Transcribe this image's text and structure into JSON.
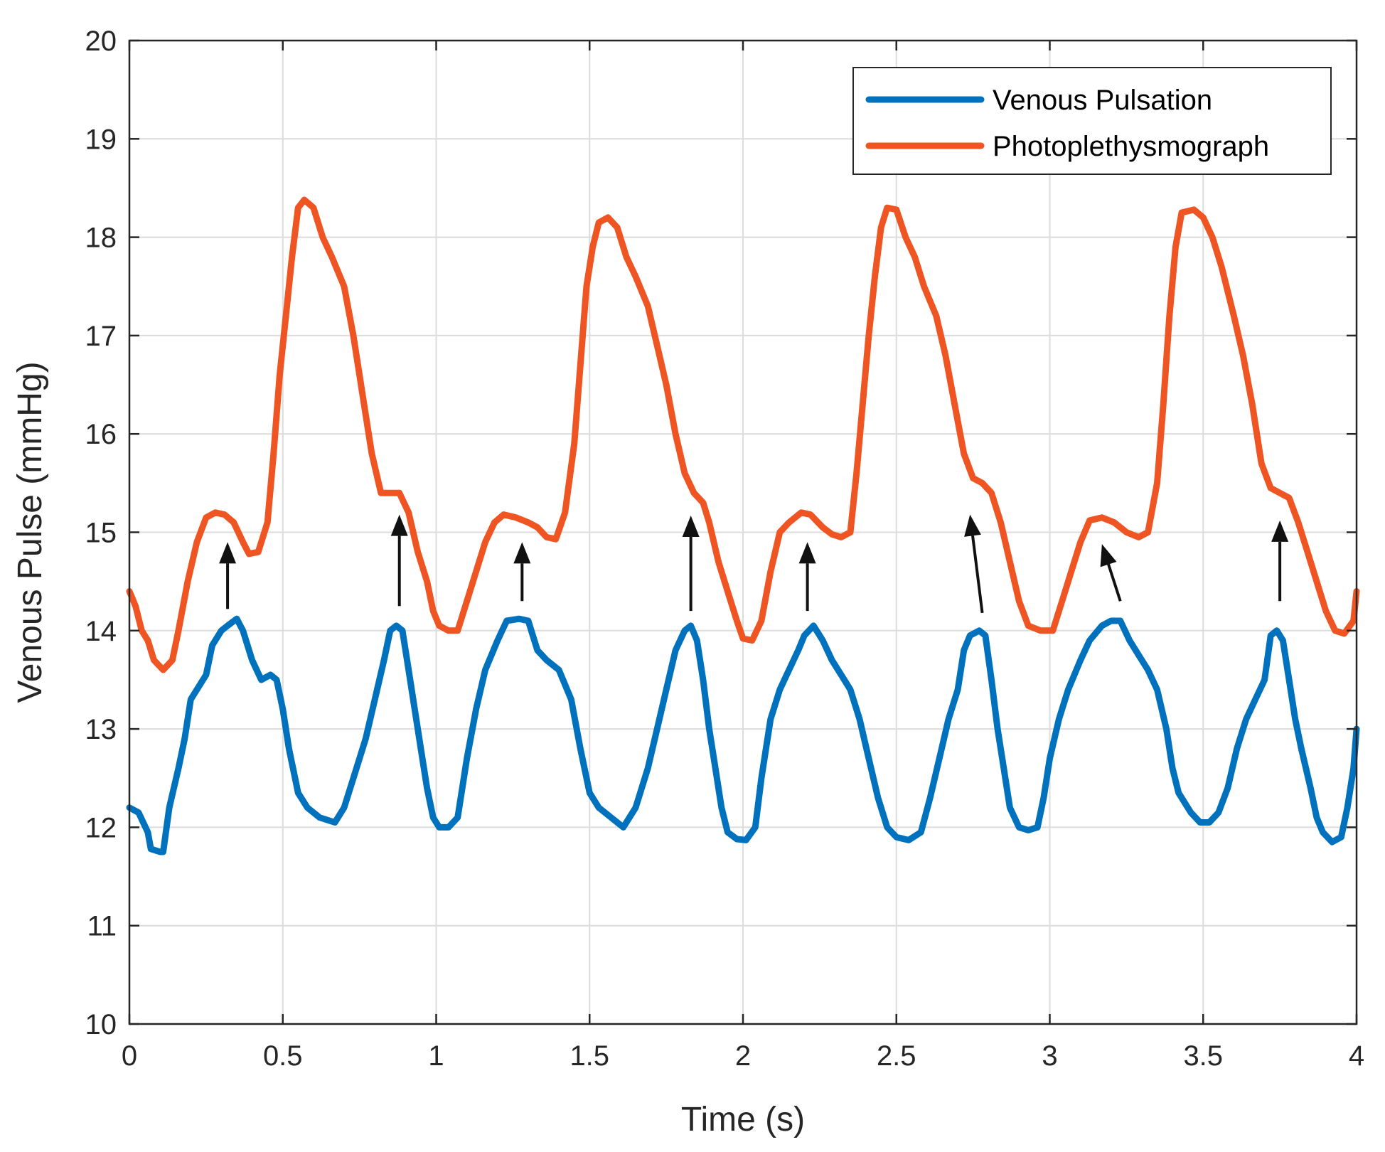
{
  "chart_data": {
    "type": "line",
    "title": "",
    "xlabel": "Time (s)",
    "ylabel": "Venous Pulse (mmHg)",
    "xlim": [
      0,
      4
    ],
    "ylim": [
      10,
      20
    ],
    "xticks": [
      0,
      0.5,
      1,
      1.5,
      2,
      2.5,
      3,
      3.5,
      4
    ],
    "xtick_labels": [
      "0",
      "0.5",
      "1",
      "1.5",
      "2",
      "2.5",
      "3",
      "3.5",
      "4"
    ],
    "yticks": [
      10,
      11,
      12,
      13,
      14,
      15,
      16,
      17,
      18,
      19,
      20
    ],
    "ytick_labels": [
      "10",
      "11",
      "12",
      "13",
      "14",
      "15",
      "16",
      "17",
      "18",
      "19",
      "20"
    ],
    "grid": true,
    "legend_position": "top-right",
    "series": [
      {
        "name": "Venous Pulsation",
        "color": "#0072BD",
        "points": [
          [
            0,
            12.2
          ],
          [
            0.03,
            12.15
          ],
          [
            0.06,
            11.95
          ],
          [
            0.07,
            11.78
          ],
          [
            0.1,
            11.75
          ],
          [
            0.11,
            11.75
          ],
          [
            0.13,
            12.2
          ],
          [
            0.16,
            12.6
          ],
          [
            0.18,
            12.9
          ],
          [
            0.2,
            13.3
          ],
          [
            0.23,
            13.45
          ],
          [
            0.25,
            13.55
          ],
          [
            0.27,
            13.85
          ],
          [
            0.3,
            14.0
          ],
          [
            0.32,
            14.05
          ],
          [
            0.35,
            14.12
          ],
          [
            0.37,
            14.0
          ],
          [
            0.4,
            13.7
          ],
          [
            0.43,
            13.5
          ],
          [
            0.46,
            13.55
          ],
          [
            0.48,
            13.5
          ],
          [
            0.5,
            13.2
          ],
          [
            0.52,
            12.8
          ],
          [
            0.55,
            12.35
          ],
          [
            0.58,
            12.2
          ],
          [
            0.62,
            12.1
          ],
          [
            0.67,
            12.05
          ],
          [
            0.7,
            12.2
          ],
          [
            0.73,
            12.5
          ],
          [
            0.77,
            12.9
          ],
          [
            0.8,
            13.3
          ],
          [
            0.83,
            13.7
          ],
          [
            0.85,
            14.0
          ],
          [
            0.87,
            14.05
          ],
          [
            0.89,
            14.0
          ],
          [
            0.91,
            13.6
          ],
          [
            0.93,
            13.2
          ],
          [
            0.95,
            12.8
          ],
          [
            0.97,
            12.4
          ],
          [
            0.99,
            12.1
          ],
          [
            1.01,
            12.0
          ],
          [
            1.04,
            12.0
          ],
          [
            1.07,
            12.1
          ],
          [
            1.1,
            12.7
          ],
          [
            1.13,
            13.2
          ],
          [
            1.16,
            13.6
          ],
          [
            1.2,
            13.9
          ],
          [
            1.23,
            14.1
          ],
          [
            1.27,
            14.12
          ],
          [
            1.3,
            14.1
          ],
          [
            1.33,
            13.8
          ],
          [
            1.36,
            13.7
          ],
          [
            1.4,
            13.6
          ],
          [
            1.44,
            13.3
          ],
          [
            1.47,
            12.8
          ],
          [
            1.5,
            12.35
          ],
          [
            1.53,
            12.2
          ],
          [
            1.57,
            12.1
          ],
          [
            1.61,
            12.0
          ],
          [
            1.65,
            12.2
          ],
          [
            1.69,
            12.6
          ],
          [
            1.72,
            13.0
          ],
          [
            1.75,
            13.4
          ],
          [
            1.78,
            13.8
          ],
          [
            1.81,
            14.0
          ],
          [
            1.83,
            14.05
          ],
          [
            1.85,
            13.9
          ],
          [
            1.87,
            13.5
          ],
          [
            1.89,
            13.0
          ],
          [
            1.91,
            12.6
          ],
          [
            1.93,
            12.2
          ],
          [
            1.95,
            11.95
          ],
          [
            1.98,
            11.88
          ],
          [
            2.01,
            11.87
          ],
          [
            2.04,
            12.0
          ],
          [
            2.06,
            12.5
          ],
          [
            2.09,
            13.1
          ],
          [
            2.12,
            13.4
          ],
          [
            2.15,
            13.6
          ],
          [
            2.18,
            13.8
          ],
          [
            2.2,
            13.95
          ],
          [
            2.23,
            14.05
          ],
          [
            2.26,
            13.9
          ],
          [
            2.29,
            13.7
          ],
          [
            2.32,
            13.55
          ],
          [
            2.35,
            13.4
          ],
          [
            2.38,
            13.1
          ],
          [
            2.41,
            12.7
          ],
          [
            2.44,
            12.3
          ],
          [
            2.47,
            12.0
          ],
          [
            2.5,
            11.9
          ],
          [
            2.54,
            11.87
          ],
          [
            2.58,
            11.95
          ],
          [
            2.61,
            12.3
          ],
          [
            2.64,
            12.7
          ],
          [
            2.67,
            13.1
          ],
          [
            2.7,
            13.4
          ],
          [
            2.72,
            13.8
          ],
          [
            2.74,
            13.95
          ],
          [
            2.77,
            14.0
          ],
          [
            2.79,
            13.95
          ],
          [
            2.81,
            13.5
          ],
          [
            2.83,
            13.0
          ],
          [
            2.85,
            12.6
          ],
          [
            2.87,
            12.2
          ],
          [
            2.9,
            12.0
          ],
          [
            2.93,
            11.97
          ],
          [
            2.96,
            12.0
          ],
          [
            2.98,
            12.3
          ],
          [
            3.0,
            12.7
          ],
          [
            3.03,
            13.1
          ],
          [
            3.06,
            13.4
          ],
          [
            3.1,
            13.7
          ],
          [
            3.13,
            13.9
          ],
          [
            3.17,
            14.05
          ],
          [
            3.2,
            14.1
          ],
          [
            3.23,
            14.1
          ],
          [
            3.26,
            13.9
          ],
          [
            3.29,
            13.75
          ],
          [
            3.32,
            13.6
          ],
          [
            3.35,
            13.4
          ],
          [
            3.38,
            13.0
          ],
          [
            3.4,
            12.6
          ],
          [
            3.42,
            12.35
          ],
          [
            3.46,
            12.15
          ],
          [
            3.49,
            12.05
          ],
          [
            3.52,
            12.05
          ],
          [
            3.55,
            12.15
          ],
          [
            3.58,
            12.4
          ],
          [
            3.61,
            12.8
          ],
          [
            3.64,
            13.1
          ],
          [
            3.67,
            13.3
          ],
          [
            3.7,
            13.5
          ],
          [
            3.72,
            13.95
          ],
          [
            3.74,
            14.0
          ],
          [
            3.76,
            13.9
          ],
          [
            3.78,
            13.5
          ],
          [
            3.8,
            13.1
          ],
          [
            3.82,
            12.8
          ],
          [
            3.85,
            12.4
          ],
          [
            3.87,
            12.1
          ],
          [
            3.89,
            11.95
          ],
          [
            3.92,
            11.85
          ],
          [
            3.95,
            11.9
          ],
          [
            3.97,
            12.2
          ],
          [
            3.99,
            12.6
          ],
          [
            4.0,
            13.0
          ]
        ]
      },
      {
        "name": "Photoplethysmograph",
        "color": "#EE5522",
        "points": [
          [
            0,
            14.4
          ],
          [
            0.02,
            14.25
          ],
          [
            0.04,
            14.0
          ],
          [
            0.06,
            13.9
          ],
          [
            0.08,
            13.7
          ],
          [
            0.11,
            13.6
          ],
          [
            0.14,
            13.7
          ],
          [
            0.16,
            14.0
          ],
          [
            0.19,
            14.5
          ],
          [
            0.22,
            14.9
          ],
          [
            0.25,
            15.15
          ],
          [
            0.28,
            15.2
          ],
          [
            0.31,
            15.18
          ],
          [
            0.34,
            15.1
          ],
          [
            0.37,
            14.9
          ],
          [
            0.39,
            14.78
          ],
          [
            0.42,
            14.8
          ],
          [
            0.45,
            15.1
          ],
          [
            0.47,
            15.8
          ],
          [
            0.49,
            16.6
          ],
          [
            0.51,
            17.2
          ],
          [
            0.53,
            17.8
          ],
          [
            0.55,
            18.3
          ],
          [
            0.57,
            18.38
          ],
          [
            0.6,
            18.3
          ],
          [
            0.63,
            18.0
          ],
          [
            0.66,
            17.8
          ],
          [
            0.7,
            17.5
          ],
          [
            0.73,
            17.0
          ],
          [
            0.76,
            16.4
          ],
          [
            0.79,
            15.8
          ],
          [
            0.82,
            15.4
          ],
          [
            0.85,
            15.4
          ],
          [
            0.88,
            15.4
          ],
          [
            0.91,
            15.2
          ],
          [
            0.94,
            14.8
          ],
          [
            0.97,
            14.5
          ],
          [
            0.99,
            14.2
          ],
          [
            1.01,
            14.05
          ],
          [
            1.04,
            14.0
          ],
          [
            1.07,
            14.0
          ],
          [
            1.1,
            14.3
          ],
          [
            1.13,
            14.6
          ],
          [
            1.16,
            14.9
          ],
          [
            1.19,
            15.1
          ],
          [
            1.22,
            15.18
          ],
          [
            1.26,
            15.15
          ],
          [
            1.3,
            15.1
          ],
          [
            1.33,
            15.05
          ],
          [
            1.36,
            14.95
          ],
          [
            1.39,
            14.93
          ],
          [
            1.42,
            15.2
          ],
          [
            1.45,
            15.9
          ],
          [
            1.47,
            16.7
          ],
          [
            1.49,
            17.5
          ],
          [
            1.51,
            17.9
          ],
          [
            1.53,
            18.15
          ],
          [
            1.56,
            18.2
          ],
          [
            1.59,
            18.1
          ],
          [
            1.62,
            17.8
          ],
          [
            1.65,
            17.6
          ],
          [
            1.69,
            17.3
          ],
          [
            1.72,
            16.9
          ],
          [
            1.75,
            16.5
          ],
          [
            1.78,
            16.0
          ],
          [
            1.81,
            15.6
          ],
          [
            1.84,
            15.4
          ],
          [
            1.87,
            15.3
          ],
          [
            1.89,
            15.1
          ],
          [
            1.92,
            14.7
          ],
          [
            1.95,
            14.4
          ],
          [
            1.98,
            14.1
          ],
          [
            2.0,
            13.92
          ],
          [
            2.03,
            13.9
          ],
          [
            2.06,
            14.1
          ],
          [
            2.09,
            14.6
          ],
          [
            2.12,
            15.0
          ],
          [
            2.15,
            15.1
          ],
          [
            2.19,
            15.2
          ],
          [
            2.22,
            15.18
          ],
          [
            2.26,
            15.05
          ],
          [
            2.29,
            14.98
          ],
          [
            2.32,
            14.95
          ],
          [
            2.35,
            15.0
          ],
          [
            2.37,
            15.6
          ],
          [
            2.39,
            16.3
          ],
          [
            2.41,
            17.0
          ],
          [
            2.43,
            17.6
          ],
          [
            2.45,
            18.1
          ],
          [
            2.47,
            18.3
          ],
          [
            2.5,
            18.28
          ],
          [
            2.53,
            18.0
          ],
          [
            2.56,
            17.8
          ],
          [
            2.59,
            17.5
          ],
          [
            2.63,
            17.2
          ],
          [
            2.66,
            16.8
          ],
          [
            2.69,
            16.3
          ],
          [
            2.72,
            15.8
          ],
          [
            2.75,
            15.55
          ],
          [
            2.78,
            15.5
          ],
          [
            2.81,
            15.4
          ],
          [
            2.84,
            15.1
          ],
          [
            2.87,
            14.7
          ],
          [
            2.9,
            14.3
          ],
          [
            2.93,
            14.05
          ],
          [
            2.97,
            14.0
          ],
          [
            3.01,
            14.0
          ],
          [
            3.04,
            14.3
          ],
          [
            3.07,
            14.6
          ],
          [
            3.1,
            14.9
          ],
          [
            3.13,
            15.12
          ],
          [
            3.17,
            15.15
          ],
          [
            3.21,
            15.1
          ],
          [
            3.25,
            15.0
          ],
          [
            3.29,
            14.95
          ],
          [
            3.32,
            15.0
          ],
          [
            3.35,
            15.5
          ],
          [
            3.37,
            16.3
          ],
          [
            3.39,
            17.2
          ],
          [
            3.41,
            17.9
          ],
          [
            3.43,
            18.25
          ],
          [
            3.47,
            18.28
          ],
          [
            3.5,
            18.2
          ],
          [
            3.53,
            18.0
          ],
          [
            3.56,
            17.7
          ],
          [
            3.6,
            17.2
          ],
          [
            3.63,
            16.8
          ],
          [
            3.66,
            16.3
          ],
          [
            3.69,
            15.7
          ],
          [
            3.72,
            15.45
          ],
          [
            3.75,
            15.4
          ],
          [
            3.78,
            15.35
          ],
          [
            3.81,
            15.1
          ],
          [
            3.84,
            14.8
          ],
          [
            3.87,
            14.5
          ],
          [
            3.9,
            14.2
          ],
          [
            3.93,
            14.0
          ],
          [
            3.96,
            13.97
          ],
          [
            3.99,
            14.1
          ],
          [
            4.0,
            14.4
          ]
        ]
      }
    ],
    "annotations": [
      {
        "type": "arrow",
        "from": [
          0.32,
          14.22
        ],
        "to": [
          0.32,
          14.9
        ]
      },
      {
        "type": "arrow",
        "from": [
          0.88,
          14.25
        ],
        "to": [
          0.88,
          15.18
        ]
      },
      {
        "type": "arrow",
        "from": [
          1.28,
          14.3
        ],
        "to": [
          1.28,
          14.9
        ]
      },
      {
        "type": "arrow",
        "from": [
          1.83,
          14.2
        ],
        "to": [
          1.83,
          15.17
        ]
      },
      {
        "type": "arrow",
        "from": [
          2.21,
          14.2
        ],
        "to": [
          2.21,
          14.9
        ]
      },
      {
        "type": "arrow",
        "from": [
          2.78,
          14.18
        ],
        "to": [
          2.74,
          15.18
        ]
      },
      {
        "type": "arrow",
        "from": [
          3.23,
          14.3
        ],
        "to": [
          3.17,
          14.88
        ]
      },
      {
        "type": "arrow",
        "from": [
          3.75,
          14.3
        ],
        "to": [
          3.75,
          15.12
        ]
      }
    ]
  }
}
